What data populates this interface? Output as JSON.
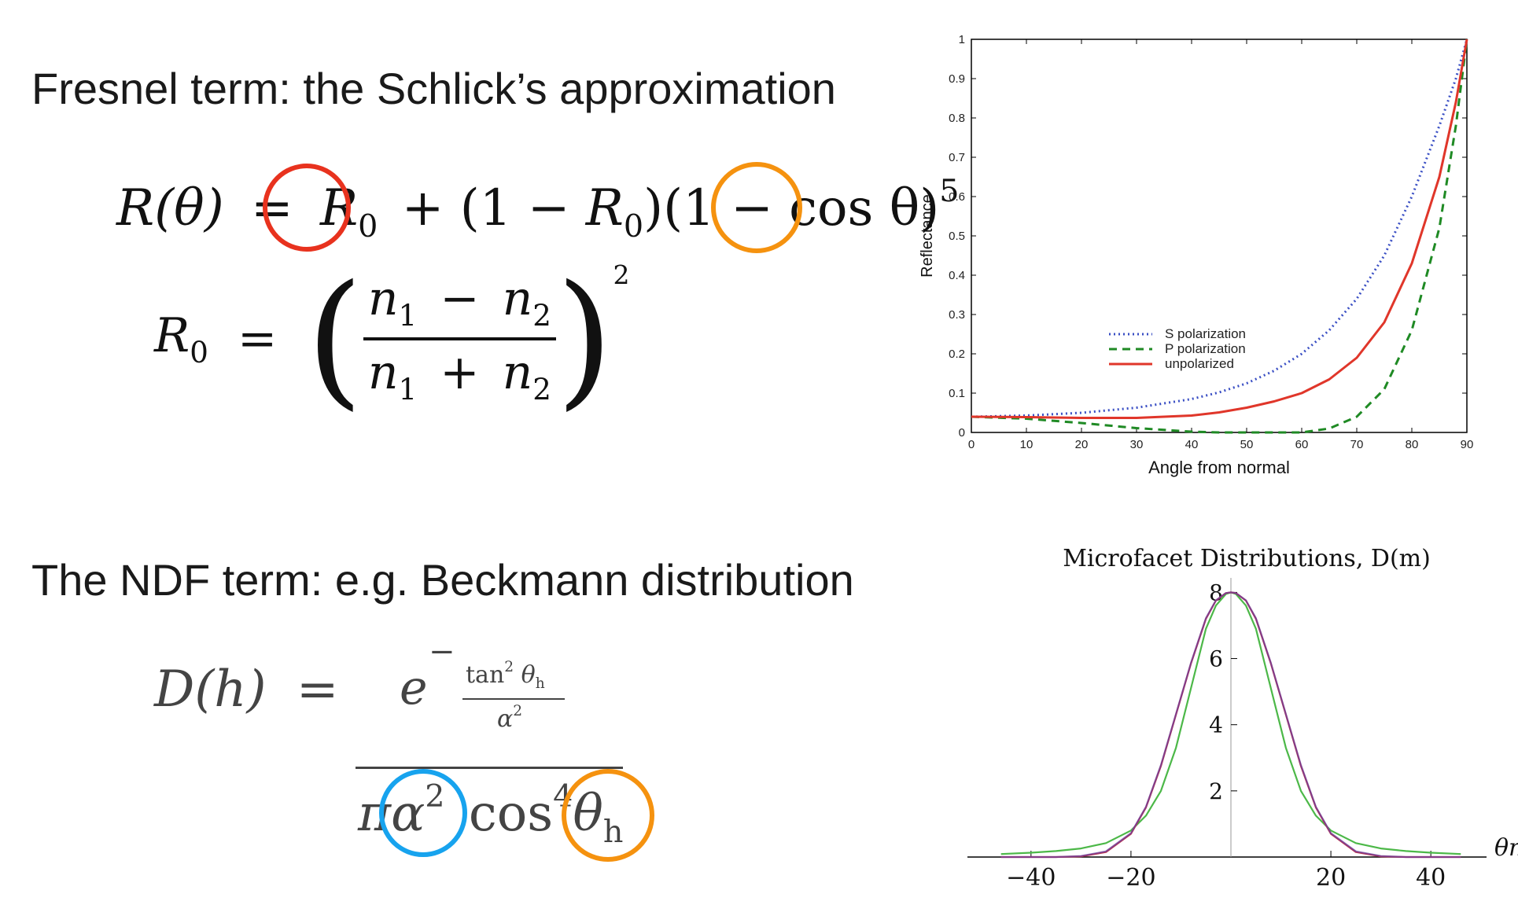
{
  "slide": {
    "fresnel_heading": "Fresnel term: the Schlick’s approximation",
    "ndf_heading": "The NDF term: e.g. Beckmann distribution"
  },
  "equations": {
    "schlick": {
      "lhs": "R(θ)",
      "eq": "=",
      "r0": "R",
      "r0_sub": "0",
      "mid": "+ (1 − ",
      "mid_r": "R",
      "mid_sub": "0",
      "tail": ")(1 − co",
      "cos_rest": "s θ)",
      "exponent": "5"
    },
    "r0": {
      "lhs": "R",
      "lhs_sub": "0",
      "eq": "=",
      "num_n1": "n",
      "num_n1_sub": "1",
      "num_op": "−",
      "num_n2": "n",
      "num_n2_sub": "2",
      "den_n1": "n",
      "den_n1_sub": "1",
      "den_op": "+",
      "den_n2": "n",
      "den_n2_sub": "2",
      "exponent": "2"
    },
    "beckmann": {
      "lhs": "D(h)",
      "eq": "=",
      "e": "e",
      "minus": "−",
      "tan": "tan",
      "tan_sup": "2",
      "theta_h": "θ",
      "theta_sub": "h",
      "alpha": "α",
      "alpha_sup": "2",
      "pi": "π",
      "den_alpha": "α",
      "den_alpha_sup": "2",
      "cos": "cos",
      "cos_sup": "4",
      "den_theta": "θ",
      "den_theta_sub": "h"
    }
  },
  "highlights": {
    "red": "#e8321e",
    "orange": "#f5920f",
    "blue": "#17a3ee"
  },
  "chart_data": [
    {
      "type": "line",
      "title": "",
      "xlabel": "Angle from normal",
      "ylabel": "Reflectance",
      "xlim": [
        0,
        90
      ],
      "ylim": [
        0,
        1
      ],
      "x_ticks": [
        "0",
        "10",
        "20",
        "30",
        "40",
        "50",
        "60",
        "70",
        "80",
        "90"
      ],
      "y_ticks": [
        "0",
        "0.1",
        "0.2",
        "0.3",
        "0.4",
        "0.5",
        "0.6",
        "0.7",
        "0.8",
        "0.9",
        "1"
      ],
      "legend_position": "center",
      "grid": false,
      "x": [
        0,
        10,
        20,
        30,
        40,
        45,
        50,
        55,
        60,
        65,
        70,
        75,
        80,
        85,
        88,
        90
      ],
      "series": [
        {
          "name": "S polarization",
          "style": "dotted",
          "color": "#3a4fc4",
          "values": [
            0.04,
            0.043,
            0.05,
            0.063,
            0.085,
            0.102,
            0.125,
            0.157,
            0.2,
            0.26,
            0.34,
            0.45,
            0.6,
            0.78,
            0.9,
            1.0
          ]
        },
        {
          "name": "P polarization",
          "style": "dashed",
          "color": "#1f8a24",
          "values": [
            0.04,
            0.035,
            0.024,
            0.011,
            0.002,
            0.0,
            0.0,
            0.0,
            0.0,
            0.01,
            0.04,
            0.11,
            0.26,
            0.52,
            0.78,
            1.0
          ]
        },
        {
          "name": "unpolarized",
          "style": "solid",
          "color": "#e0362a",
          "values": [
            0.04,
            0.039,
            0.037,
            0.037,
            0.043,
            0.051,
            0.063,
            0.079,
            0.1,
            0.135,
            0.19,
            0.28,
            0.43,
            0.65,
            0.84,
            1.0
          ]
        }
      ]
    },
    {
      "type": "line",
      "title": "Microfacet Distributions, D(m)",
      "xlabel": "θm",
      "ylabel": "",
      "xlim": [
        -48,
        48
      ],
      "ylim": [
        0,
        8.2
      ],
      "x_ticks": [
        "−40",
        "−20",
        "20",
        "40"
      ],
      "x_tick_values": [
        -40,
        -20,
        20,
        40
      ],
      "y_ticks": [
        "2",
        "4",
        "6",
        "8"
      ],
      "y_tick_values": [
        2,
        4,
        6,
        8
      ],
      "grid": false,
      "x": [
        -46,
        -40,
        -35,
        -30,
        -25,
        -20,
        -17,
        -14,
        -11,
        -8,
        -5,
        -3,
        -1,
        0,
        1,
        3,
        5,
        8,
        11,
        14,
        17,
        20,
        25,
        30,
        35,
        40,
        46
      ],
      "series": [
        {
          "color": "#4cb848",
          "values": [
            0.09,
            0.13,
            0.18,
            0.26,
            0.42,
            0.8,
            1.25,
            2.0,
            3.3,
            5.1,
            6.9,
            7.6,
            7.95,
            8.0,
            7.95,
            7.6,
            6.9,
            5.1,
            3.3,
            2.0,
            1.25,
            0.8,
            0.42,
            0.26,
            0.18,
            0.13,
            0.09
          ]
        },
        {
          "color": "#c0334a",
          "values": [
            0.0,
            0.0,
            0.0,
            0.02,
            0.15,
            0.7,
            1.5,
            2.75,
            4.3,
            5.85,
            7.2,
            7.75,
            7.98,
            8.0,
            7.98,
            7.75,
            7.2,
            5.85,
            4.3,
            2.75,
            1.5,
            0.7,
            0.15,
            0.02,
            0.0,
            0.0,
            0.0
          ]
        },
        {
          "color": "#6a3fa0",
          "values": [
            0.0,
            0.0,
            0.0,
            0.03,
            0.17,
            0.72,
            1.52,
            2.78,
            4.32,
            5.87,
            7.22,
            7.76,
            7.98,
            8.0,
            7.98,
            7.76,
            7.22,
            5.87,
            4.32,
            2.78,
            1.52,
            0.72,
            0.17,
            0.03,
            0.0,
            0.0,
            0.0
          ]
        }
      ]
    }
  ]
}
